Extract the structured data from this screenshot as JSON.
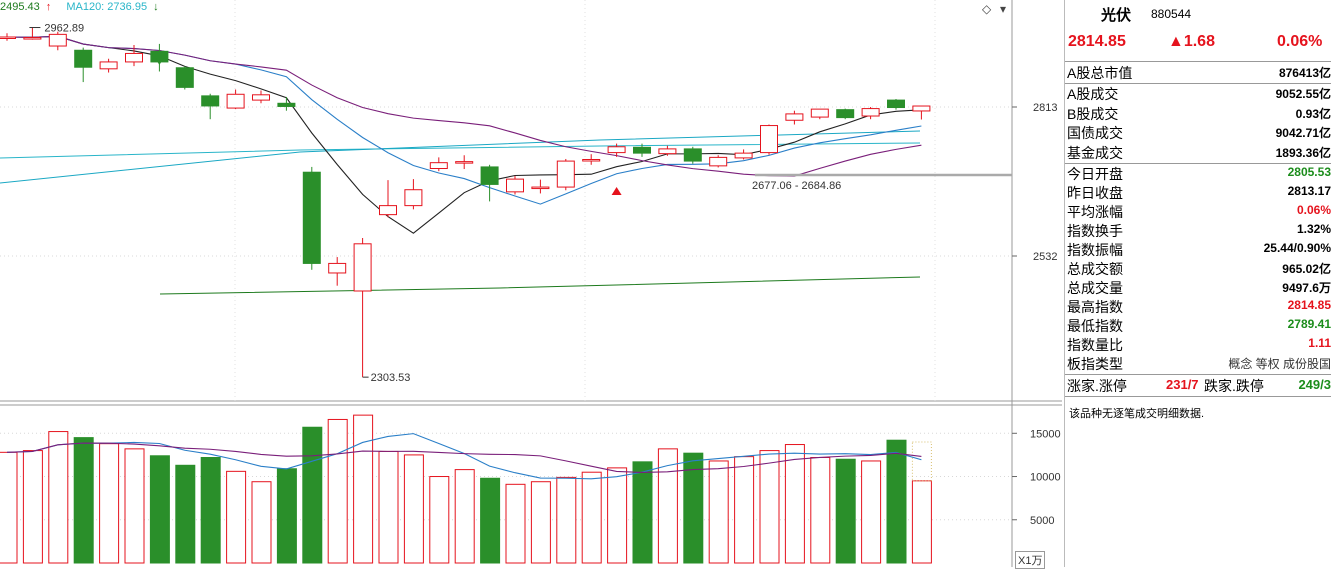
{
  "header": {
    "ma_value_1": "2495.43",
    "ma_label_2": "MA120: 2736.95"
  },
  "colors": {
    "up": "#e5131d",
    "down": "#2a8f2a",
    "ma_black": "#222222",
    "ma_purple": "#7a1f7a",
    "ma_blue": "#2a7fc8",
    "ma_cyan": "#29b5c9",
    "ma_green": "#1d7a1d"
  },
  "controls": {
    "diamond_icon": "◇",
    "scroll_down_icon": "▾"
  },
  "chart_data": {
    "type": "candlestick",
    "price_axis": {
      "ticks": [
        2813,
        2532
      ],
      "range": [
        2290,
        2985
      ]
    },
    "volume_axis": {
      "ticks": [
        15000,
        10000,
        5000
      ],
      "range": [
        0,
        17500
      ],
      "unit": "X1万"
    },
    "annotations": {
      "high": "2962.89",
      "low": "2303.53",
      "range_label": "2677.06 - 2684.86"
    },
    "candles": [
      {
        "o": 2945,
        "c": 2945,
        "h": 2952,
        "l": 2938,
        "v": 12800
      },
      {
        "o": 2944,
        "c": 2944,
        "h": 2962.89,
        "l": 2940,
        "v": 13000
      },
      {
        "o": 2928,
        "c": 2950,
        "h": 2955,
        "l": 2920,
        "v": 15200
      },
      {
        "o": 2920,
        "c": 2888,
        "h": 2925,
        "l": 2860,
        "v": 14500
      },
      {
        "o": 2885,
        "c": 2898,
        "h": 2904,
        "l": 2878,
        "v": 13800
      },
      {
        "o": 2898,
        "c": 2914,
        "h": 2930,
        "l": 2890,
        "v": 13200
      },
      {
        "o": 2918,
        "c": 2898,
        "h": 2932,
        "l": 2880,
        "v": 12400
      },
      {
        "o": 2887,
        "c": 2850,
        "h": 2890,
        "l": 2846,
        "v": 11300
      },
      {
        "o": 2834,
        "c": 2815,
        "h": 2838,
        "l": 2790,
        "v": 12200
      },
      {
        "o": 2811,
        "c": 2837,
        "h": 2846,
        "l": 2809,
        "v": 10600
      },
      {
        "o": 2826,
        "c": 2836,
        "h": 2844,
        "l": 2820,
        "v": 9400
      },
      {
        "o": 2820,
        "c": 2814,
        "h": 2832,
        "l": 2806,
        "v": 10900
      },
      {
        "o": 2690,
        "c": 2518,
        "h": 2700,
        "l": 2506,
        "v": 15700
      },
      {
        "o": 2500,
        "c": 2518,
        "h": 2530,
        "l": 2476,
        "v": 16600
      },
      {
        "o": 2466,
        "c": 2555,
        "h": 2566,
        "l": 2303.53,
        "v": 17100
      },
      {
        "o": 2610,
        "c": 2627,
        "h": 2675,
        "l": 2605,
        "v": 12900
      },
      {
        "o": 2627,
        "c": 2657,
        "h": 2677,
        "l": 2620,
        "v": 12500
      },
      {
        "o": 2697,
        "c": 2708,
        "h": 2718,
        "l": 2692,
        "v": 10000
      },
      {
        "o": 2710,
        "c": 2710,
        "h": 2722,
        "l": 2696,
        "v": 10800
      },
      {
        "o": 2700,
        "c": 2667,
        "h": 2704,
        "l": 2635,
        "v": 9800
      },
      {
        "o": 2653,
        "c": 2677,
        "h": 2683,
        "l": 2648,
        "v": 9100
      },
      {
        "o": 2662,
        "c": 2662,
        "h": 2676,
        "l": 2650,
        "v": 9400
      },
      {
        "o": 2662,
        "c": 2711,
        "h": 2715,
        "l": 2656,
        "v": 9900
      },
      {
        "o": 2714,
        "c": 2714,
        "h": 2724,
        "l": 2704,
        "v": 10500
      },
      {
        "o": 2727,
        "c": 2738,
        "h": 2744,
        "l": 2719,
        "v": 11000
      },
      {
        "o": 2737,
        "c": 2726,
        "h": 2744,
        "l": 2719,
        "v": 11700
      },
      {
        "o": 2725,
        "c": 2734,
        "h": 2740,
        "l": 2721,
        "v": 13200
      },
      {
        "o": 2734,
        "c": 2711,
        "h": 2738,
        "l": 2706,
        "v": 12700
      },
      {
        "o": 2702,
        "c": 2718,
        "h": 2722,
        "l": 2699,
        "v": 11800
      },
      {
        "o": 2717,
        "c": 2726,
        "h": 2733,
        "l": 2714,
        "v": 12300
      },
      {
        "o": 2727,
        "c": 2778,
        "h": 2780,
        "l": 2723,
        "v": 13000
      },
      {
        "o": 2788,
        "c": 2800,
        "h": 2806,
        "l": 2780,
        "v": 13700
      },
      {
        "o": 2794,
        "c": 2809,
        "h": 2809,
        "l": 2790,
        "v": 12200
      },
      {
        "o": 2808,
        "c": 2793,
        "h": 2810,
        "l": 2790,
        "v": 12000
      },
      {
        "o": 2796,
        "c": 2810,
        "h": 2813,
        "l": 2790,
        "v": 11800
      },
      {
        "o": 2826,
        "c": 2812,
        "h": 2828,
        "l": 2808,
        "v": 14200
      },
      {
        "o": 2805.53,
        "c": 2814.85,
        "h": 2814.85,
        "l": 2789.41,
        "v": 9500
      }
    ]
  },
  "panel": {
    "name": "光伏",
    "code": "880544",
    "price": "2814.85",
    "change": "▲1.68",
    "change_pct": "0.06%",
    "market_cap": {
      "label": "A股总市值",
      "value": "876413亿"
    },
    "turnover": [
      {
        "label": "A股成交",
        "value": "9052.55亿"
      },
      {
        "label": "B股成交",
        "value": "0.93亿"
      },
      {
        "label": "国债成交",
        "value": "9042.71亿"
      },
      {
        "label": "基金成交",
        "value": "1893.36亿"
      }
    ],
    "stats": [
      {
        "label": "今日开盘",
        "value": "2805.53",
        "color": "green"
      },
      {
        "label": "昨日收盘",
        "value": "2813.17",
        "color": "black"
      },
      {
        "label": "平均涨幅",
        "value": "0.06%",
        "color": "red"
      },
      {
        "label": "指数换手",
        "value": "1.32%",
        "color": "black"
      },
      {
        "label": "指数振幅",
        "value": "25.44/0.90%",
        "color": "black"
      },
      {
        "label": "总成交额",
        "value": "965.02亿",
        "color": "black"
      },
      {
        "label": "总成交量",
        "value": "9497.6万",
        "color": "black"
      },
      {
        "label": "最高指数",
        "value": "2814.85",
        "color": "red"
      },
      {
        "label": "最低指数",
        "value": "2789.41",
        "color": "green"
      },
      {
        "label": "指数量比",
        "value": "1.11",
        "color": "red"
      },
      {
        "label": "板指类型",
        "value": "概念 等权 成份股国",
        "color": "black"
      }
    ],
    "limits": {
      "up_label": "涨家.涨停",
      "up_value": "231/7",
      "down_label": "跌家.跌停",
      "down_value": "249/3"
    },
    "note": "该品种无逐笔成交明细数据."
  }
}
